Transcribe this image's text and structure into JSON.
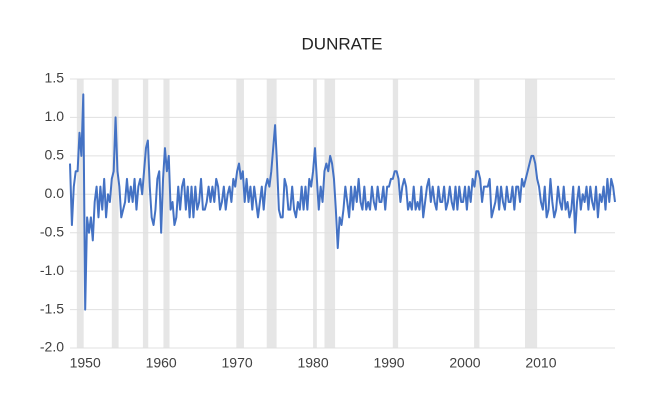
{
  "chart_data": {
    "type": "line",
    "title": "DUNRATE",
    "x": [
      1948,
      1948.25,
      1948.5,
      1948.75,
      1949,
      1949.25,
      1949.5,
      1949.75,
      1950,
      1950.25,
      1950.5,
      1950.75,
      1951,
      1951.25,
      1951.5,
      1951.75,
      1952,
      1952.25,
      1952.5,
      1952.75,
      1953,
      1953.25,
      1953.5,
      1953.75,
      1954,
      1954.25,
      1954.5,
      1954.75,
      1955,
      1955.25,
      1955.5,
      1955.75,
      1956,
      1956.25,
      1956.5,
      1956.75,
      1957,
      1957.25,
      1957.5,
      1957.75,
      1958,
      1958.25,
      1958.5,
      1958.75,
      1959,
      1959.25,
      1959.5,
      1959.75,
      1960,
      1960.25,
      1960.5,
      1960.75,
      1961,
      1961.25,
      1961.5,
      1961.75,
      1962,
      1962.25,
      1962.5,
      1962.75,
      1963,
      1963.25,
      1963.5,
      1963.75,
      1964,
      1964.25,
      1964.5,
      1964.75,
      1965,
      1965.25,
      1965.5,
      1965.75,
      1966,
      1966.25,
      1966.5,
      1966.75,
      1967,
      1967.25,
      1967.5,
      1967.75,
      1968,
      1968.25,
      1968.5,
      1968.75,
      1969,
      1969.25,
      1969.5,
      1969.75,
      1970,
      1970.25,
      1970.5,
      1970.75,
      1971,
      1971.25,
      1971.5,
      1971.75,
      1972,
      1972.25,
      1972.5,
      1972.75,
      1973,
      1973.25,
      1973.5,
      1973.75,
      1974,
      1974.25,
      1974.5,
      1974.75,
      1975,
      1975.25,
      1975.5,
      1975.75,
      1976,
      1976.25,
      1976.5,
      1976.75,
      1977,
      1977.25,
      1977.5,
      1977.75,
      1978,
      1978.25,
      1978.5,
      1978.75,
      1979,
      1979.25,
      1979.5,
      1979.75,
      1980,
      1980.25,
      1980.5,
      1980.75,
      1981,
      1981.25,
      1981.5,
      1981.75,
      1982,
      1982.25,
      1982.5,
      1982.75,
      1983,
      1983.25,
      1983.5,
      1983.75,
      1984,
      1984.25,
      1984.5,
      1984.75,
      1985,
      1985.25,
      1985.5,
      1985.75,
      1986,
      1986.25,
      1986.5,
      1986.75,
      1987,
      1987.25,
      1987.5,
      1987.75,
      1988,
      1988.25,
      1988.5,
      1988.75,
      1989,
      1989.25,
      1989.5,
      1989.75,
      1990,
      1990.25,
      1990.5,
      1990.75,
      1991,
      1991.25,
      1991.5,
      1991.75,
      1992,
      1992.25,
      1992.5,
      1992.75,
      1993,
      1993.25,
      1993.5,
      1993.75,
      1994,
      1994.25,
      1994.5,
      1994.75,
      1995,
      1995.25,
      1995.5,
      1995.75,
      1996,
      1996.25,
      1996.5,
      1996.75,
      1997,
      1997.25,
      1997.5,
      1997.75,
      1998,
      1998.25,
      1998.5,
      1998.75,
      1999,
      1999.25,
      1999.5,
      1999.75,
      2000,
      2000.25,
      2000.5,
      2000.75,
      2001,
      2001.25,
      2001.5,
      2001.75,
      2002,
      2002.25,
      2002.5,
      2002.75,
      2003,
      2003.25,
      2003.5,
      2003.75,
      2004,
      2004.25,
      2004.5,
      2004.75,
      2005,
      2005.25,
      2005.5,
      2005.75,
      2006,
      2006.25,
      2006.5,
      2006.75,
      2007,
      2007.25,
      2007.5,
      2007.75,
      2008,
      2008.25,
      2008.5,
      2008.75,
      2009,
      2009.25,
      2009.5,
      2009.75,
      2010,
      2010.25,
      2010.5,
      2010.75,
      2011,
      2011.25,
      2011.5,
      2011.75,
      2012,
      2012.25,
      2012.5,
      2012.75,
      2013,
      2013.25,
      2013.5,
      2013.75,
      2014,
      2014.25,
      2014.5,
      2014.75,
      2015,
      2015.25,
      2015.5,
      2015.75,
      2016,
      2016.25,
      2016.5,
      2016.75,
      2017,
      2017.25,
      2017.5,
      2017.75,
      2018,
      2018.25,
      2018.5,
      2018.75,
      2019,
      2019.25,
      2019.5,
      2019.75
    ],
    "series": [
      {
        "color": "#4472c4",
        "values": [
          0.4,
          -0.4,
          0.1,
          0.3,
          0.3,
          0.8,
          0.5,
          1.3,
          -1.5,
          -0.3,
          -0.5,
          -0.3,
          -0.6,
          -0.1,
          0.1,
          -0.3,
          0.1,
          -0.2,
          0.2,
          -0.3,
          0.0,
          -0.1,
          0.2,
          0.3,
          1.0,
          0.3,
          0.1,
          -0.3,
          -0.2,
          -0.1,
          0.2,
          -0.1,
          0.1,
          -0.1,
          0.2,
          -0.2,
          0.1,
          0.2,
          0.0,
          0.3,
          0.6,
          0.7,
          0.1,
          -0.3,
          -0.4,
          -0.2,
          0.2,
          0.3,
          -0.5,
          0.2,
          0.6,
          0.3,
          0.5,
          -0.2,
          -0.1,
          -0.4,
          -0.3,
          0.1,
          -0.2,
          0.1,
          0.2,
          -0.2,
          0.1,
          -0.3,
          0.1,
          -0.3,
          0.1,
          -0.2,
          -0.1,
          0.2,
          -0.2,
          -0.2,
          -0.1,
          0.1,
          -0.1,
          0.1,
          -0.1,
          0.2,
          0.1,
          -0.2,
          -0.1,
          0.1,
          -0.2,
          0.0,
          0.1,
          -0.1,
          0.2,
          0.1,
          0.3,
          0.4,
          0.2,
          0.3,
          -0.1,
          0.2,
          -0.1,
          0.1,
          -0.2,
          0.1,
          -0.1,
          -0.3,
          -0.1,
          0.1,
          -0.2,
          0.1,
          0.2,
          0.1,
          0.3,
          0.6,
          0.9,
          0.4,
          -0.2,
          -0.3,
          -0.3,
          0.2,
          0.1,
          -0.2,
          -0.2,
          0.1,
          -0.2,
          -0.3,
          -0.1,
          -0.2,
          0.1,
          -0.2,
          0.1,
          -0.2,
          0.2,
          0.1,
          0.3,
          0.6,
          0.2,
          -0.2,
          0.1,
          -0.1,
          0.3,
          0.4,
          0.3,
          0.5,
          0.4,
          0.2,
          -0.2,
          -0.7,
          -0.3,
          -0.4,
          -0.2,
          0.1,
          -0.1,
          -0.3,
          0.1,
          -0.2,
          0.1,
          -0.1,
          0.2,
          -0.1,
          -0.2,
          0.1,
          -0.2,
          -0.1,
          -0.2,
          0.1,
          -0.1,
          -0.2,
          0.1,
          -0.1,
          -0.1,
          0.1,
          -0.2,
          0.1,
          0.1,
          0.2,
          0.2,
          0.3,
          0.3,
          0.2,
          -0.1,
          0.1,
          0.2,
          0.1,
          -0.2,
          -0.1,
          -0.2,
          0.1,
          -0.2,
          -0.1,
          -0.2,
          0.1,
          -0.3,
          -0.1,
          0.1,
          0.2,
          -0.1,
          0.1,
          -0.1,
          -0.2,
          0.1,
          -0.1,
          -0.1,
          0.1,
          -0.2,
          -0.1,
          0.1,
          -0.1,
          -0.2,
          0.1,
          -0.2,
          0.1,
          -0.1,
          -0.1,
          0.1,
          -0.2,
          0.1,
          -0.1,
          0.2,
          0.1,
          0.3,
          0.3,
          0.2,
          -0.1,
          0.1,
          0.1,
          0.1,
          0.2,
          -0.3,
          -0.2,
          -0.1,
          0.1,
          -0.2,
          0.1,
          -0.1,
          -0.2,
          0.1,
          -0.1,
          -0.1,
          0.1,
          -0.2,
          0.1,
          0.1,
          -0.1,
          0.2,
          0.1,
          0.2,
          0.3,
          0.4,
          0.5,
          0.5,
          0.4,
          0.2,
          0.1,
          -0.1,
          -0.2,
          0.1,
          -0.3,
          -0.2,
          0.2,
          -0.1,
          -0.3,
          -0.2,
          0.1,
          -0.1,
          -0.2,
          0.1,
          -0.2,
          -0.1,
          -0.3,
          -0.2,
          0.1,
          -0.5,
          -0.1,
          0.1,
          -0.2,
          0.0,
          -0.1,
          0.1,
          -0.2,
          0.1,
          -0.1,
          -0.2,
          0.1,
          -0.3,
          0.0,
          -0.1,
          0.1,
          -0.2,
          0.2,
          -0.1,
          0.2,
          0.1,
          -0.1
        ]
      }
    ],
    "recessions": [
      [
        1948.9,
        1949.8
      ],
      [
        1953.5,
        1954.4
      ],
      [
        1957.6,
        1958.3
      ],
      [
        1960.3,
        1961.1
      ],
      [
        1969.9,
        1970.9
      ],
      [
        1973.9,
        1975.2
      ],
      [
        1980.0,
        1980.5
      ],
      [
        1981.5,
        1982.9
      ],
      [
        1990.5,
        1991.2
      ],
      [
        2001.2,
        2001.9
      ],
      [
        2007.9,
        2009.5
      ]
    ],
    "recession_color": "#e6e6e6",
    "xlim": [
      1948,
      2019.75
    ],
    "xticks": [
      1950,
      1960,
      1970,
      1980,
      1990,
      2000,
      2010
    ],
    "ylim": [
      -2.0,
      1.5
    ],
    "yticks": [
      {
        "value": -2.0,
        "label": "-2.0"
      },
      -1.5,
      {
        "value": -1.0,
        "label": "-1.0"
      },
      -0.5,
      {
        "value": 0.0,
        "label": "0.0"
      },
      0.5,
      {
        "value": 1.0,
        "label": "1.0"
      },
      1.5
    ],
    "grid": true
  }
}
